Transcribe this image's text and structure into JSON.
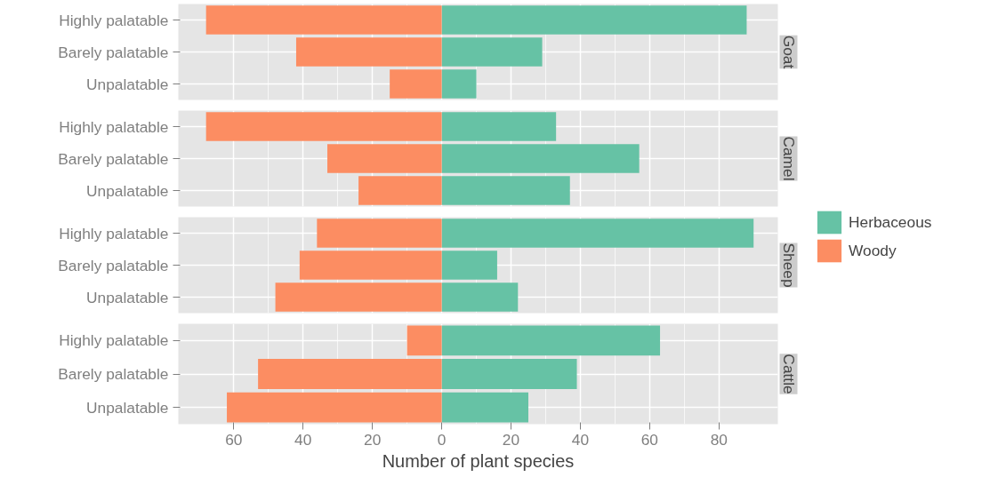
{
  "chart_data": [
    {
      "type": "bar",
      "orientation": "horizontal",
      "stacked": true,
      "title": "Goat",
      "categories": [
        "Highly palatable",
        "Barely palatable",
        "Unpalatable"
      ],
      "series": [
        {
          "name": "Herbaceous",
          "color": "#66c2a5",
          "values": [
            88,
            29,
            10
          ]
        },
        {
          "name": "Woody",
          "color": "#fc8d62",
          "values": [
            -68,
            -42,
            -15
          ]
        }
      ],
      "xlim": [
        -76,
        97
      ],
      "xticks": [
        {
          "value": -60,
          "label": null
        },
        {
          "value": -40,
          "label": null
        },
        {
          "value": -20,
          "label": null
        },
        {
          "value": 0,
          "label": null
        },
        {
          "value": 20,
          "label": null
        },
        {
          "value": 40,
          "label": null
        },
        {
          "value": 60,
          "label": null
        },
        {
          "value": 80,
          "label": null
        }
      ],
      "grid": true,
      "tick_labels": "y",
      "legend": "right"
    },
    {
      "type": "bar",
      "orientation": "horizontal",
      "stacked": true,
      "title": "Camel",
      "categories": [
        "Highly palatable",
        "Barely palatable",
        "Unpalatable"
      ],
      "series": [
        {
          "color": "#66c2a5",
          "values": [
            33,
            57,
            37
          ]
        },
        {
          "color": "#fc8d62",
          "values": [
            -68,
            -33,
            -24
          ]
        }
      ],
      "xlim": [
        -76,
        97
      ],
      "xticks": [
        {
          "value": -60,
          "label": null
        },
        {
          "value": -40,
          "label": null
        },
        {
          "value": -20,
          "label": null
        },
        {
          "value": 0,
          "label": null
        },
        {
          "value": 20,
          "label": null
        },
        {
          "value": 40,
          "label": null
        },
        {
          "value": 60,
          "label": null
        },
        {
          "value": 80,
          "label": null
        }
      ],
      "grid": true,
      "tick_labels": "y"
    },
    {
      "type": "bar",
      "orientation": "horizontal",
      "stacked": true,
      "title": "Sheep",
      "categories": [
        "Highly palatable",
        "Barely palatable",
        "Unpalatable"
      ],
      "series": [
        {
          "color": "#66c2a5",
          "values": [
            90,
            16,
            22
          ]
        },
        {
          "color": "#fc8d62",
          "values": [
            -36,
            -41,
            -48
          ]
        }
      ],
      "xlim": [
        -76,
        97
      ],
      "xticks": [
        {
          "value": -60,
          "label": null
        },
        {
          "value": -40,
          "label": null
        },
        {
          "value": -20,
          "label": null
        },
        {
          "value": 0,
          "label": null
        },
        {
          "value": 20,
          "label": null
        },
        {
          "value": 40,
          "label": null
        },
        {
          "value": 60,
          "label": null
        },
        {
          "value": 80,
          "label": null
        }
      ],
      "grid": true,
      "tick_labels": "y"
    },
    {
      "type": "bar",
      "orientation": "horizontal",
      "stacked": true,
      "title": "Cattle",
      "xlabel": "Number of plant species",
      "categories": [
        "Highly palatable",
        "Barely palatable",
        "Unpalatable"
      ],
      "series": [
        {
          "color": "#66c2a5",
          "values": [
            63,
            39,
            25
          ]
        },
        {
          "color": "#fc8d62",
          "values": [
            -10,
            -53,
            -62
          ]
        }
      ],
      "xlim": [
        -76,
        97
      ],
      "xticks": [
        {
          "value": -60,
          "label": "60"
        },
        {
          "value": -40,
          "label": "40"
        },
        {
          "value": -20,
          "label": "20"
        },
        0,
        20,
        40,
        60,
        80
      ],
      "grid": true
    }
  ]
}
